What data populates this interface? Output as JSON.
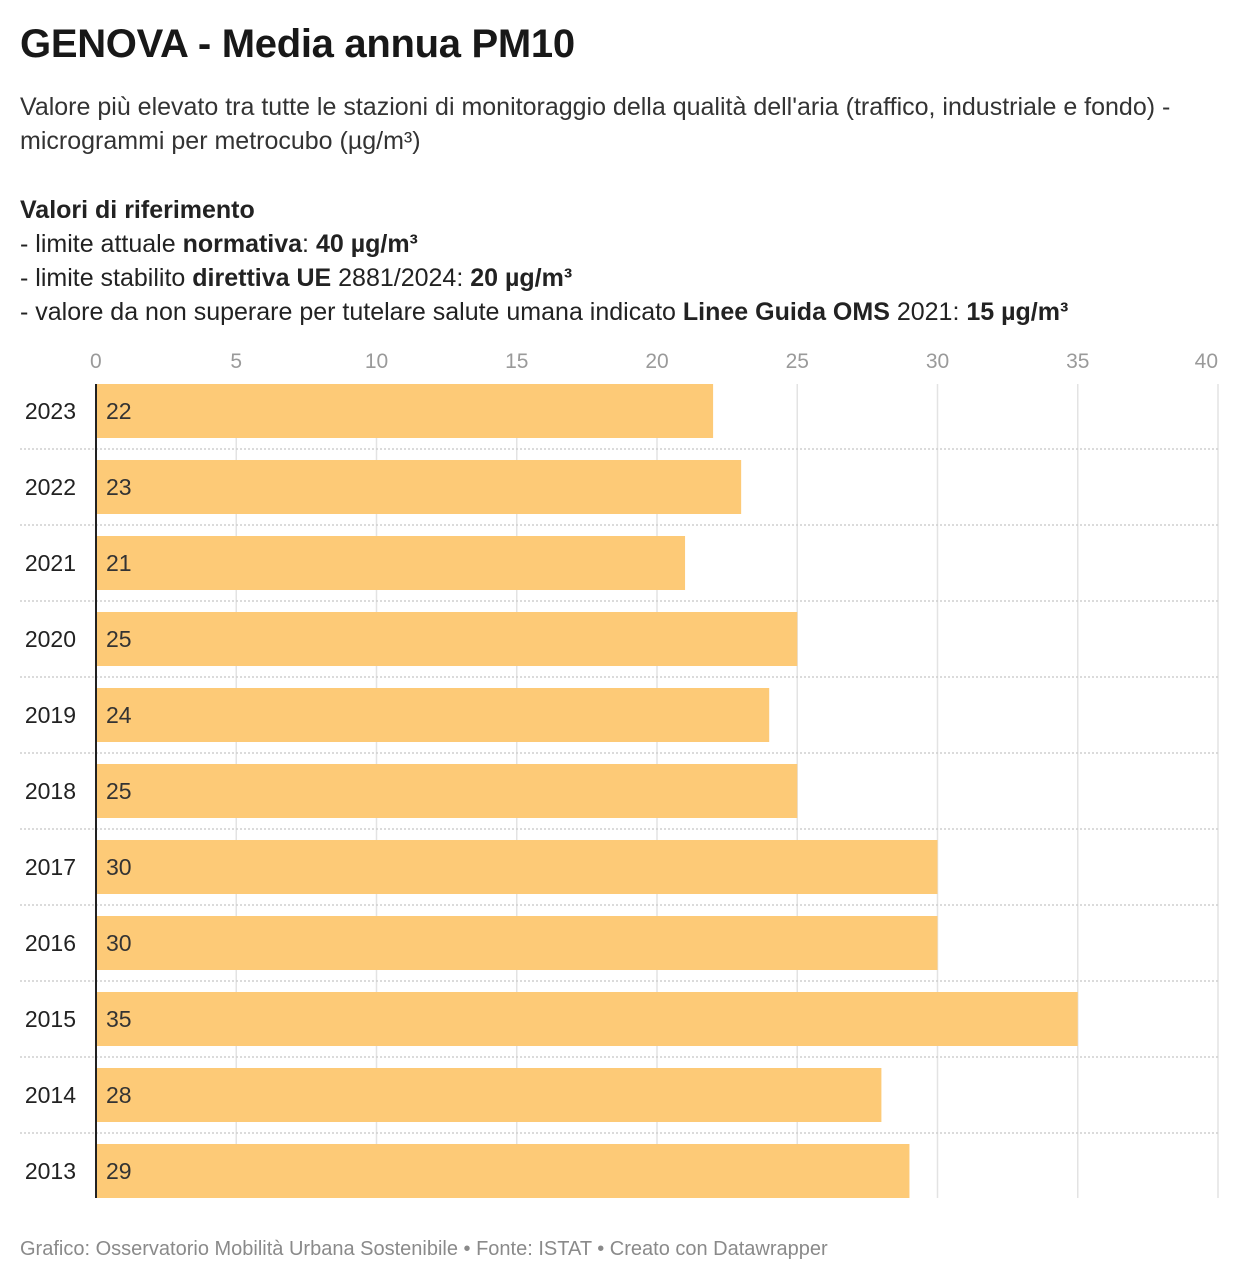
{
  "title": "GENOVA - Media annua PM10",
  "subtitle": "Valore più elevato tra tutte le stazioni di monitoraggio della qualità dell'aria (traffico, industriale e fondo) - microgrammi per metrocubo (µg/m³)",
  "references": {
    "heading": "Valori di riferimento",
    "line1": {
      "prefix": "- limite attuale ",
      "bold1": "normativa",
      "mid": ": ",
      "bold2": "40 µg/m³"
    },
    "line2": {
      "prefix": "- limite stabilito ",
      "bold1": "direttiva UE",
      "mid": " 2881/2024: ",
      "bold2": "20 µg/m³"
    },
    "line3": {
      "prefix": "- valore da non superare per tutelare salute umana indicato ",
      "bold1": "Linee Guida OMS",
      "mid": " 2021: ",
      "bold2": "15 µg/m³"
    }
  },
  "chart_data": {
    "type": "bar",
    "orientation": "horizontal",
    "categories": [
      "2023",
      "2022",
      "2021",
      "2020",
      "2019",
      "2018",
      "2017",
      "2016",
      "2015",
      "2014",
      "2013"
    ],
    "values": [
      22,
      23,
      21,
      25,
      24,
      25,
      30,
      30,
      35,
      28,
      29
    ],
    "xlim": [
      0,
      40
    ],
    "xticks": [
      0,
      5,
      10,
      15,
      20,
      25,
      30,
      35,
      40
    ],
    "xaxis_position": "top",
    "bar_color": "#fdca77",
    "grid": true
  },
  "footer": "Grafico: Osservatorio Mobilità Urbana Sostenibile • Fonte: ISTAT • Creato con Datawrapper"
}
